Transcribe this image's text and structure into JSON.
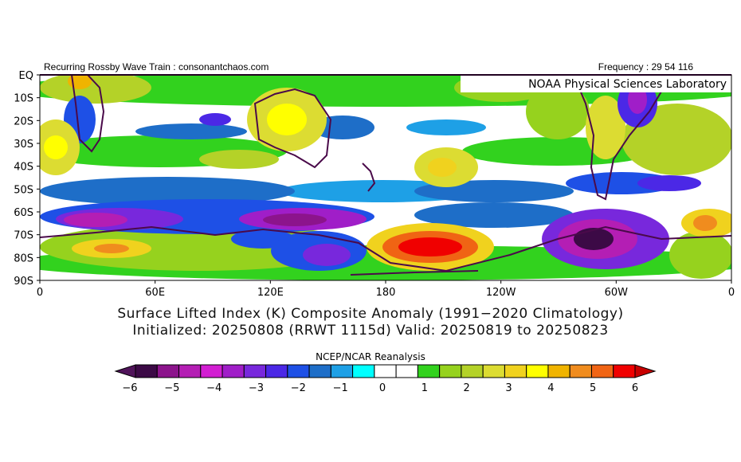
{
  "header": {
    "left": "Recurring Rossby Wave Train : consonantchaos.com",
    "right": "Frequency : 29 54 116",
    "lab": "NOAA Physical Sciences Laboratory"
  },
  "map": {
    "lat_labels": [
      "EQ",
      "10S",
      "20S",
      "30S",
      "40S",
      "50S",
      "60S",
      "70S",
      "80S",
      "90S"
    ],
    "lon_labels": [
      "0",
      "60E",
      "120E",
      "180",
      "120W",
      "60W",
      "0"
    ]
  },
  "title": {
    "line1": "Surface Lifted Index (K) Composite Anomaly (1991−2020 Climatology)",
    "line2": "Initialized: 20250808 (RRWT 1115d) Valid: 20250819 to 20250823"
  },
  "colorbar": {
    "title": "NCEP/NCAR Reanalysis",
    "ticks": [
      "−6",
      "−5",
      "−4",
      "−3",
      "−2",
      "−1",
      "0",
      "1",
      "2",
      "3",
      "4",
      "5",
      "6"
    ],
    "colors": [
      "#3c0a46",
      "#8c148c",
      "#b41eb4",
      "#d21ed2",
      "#a01ec8",
      "#7828dc",
      "#4b28e6",
      "#1e50e6",
      "#1e6ec8",
      "#1ea0e6",
      "#00ffff",
      "#ffffff",
      "#ffffff",
      "#32d21e",
      "#96d21e",
      "#b4d228",
      "#dcdc32",
      "#f0d21e",
      "#ffff00",
      "#f0b400",
      "#f08c1e",
      "#f06414",
      "#f00000"
    ],
    "low_color": "#50145a",
    "high_color": "#c80000"
  }
}
